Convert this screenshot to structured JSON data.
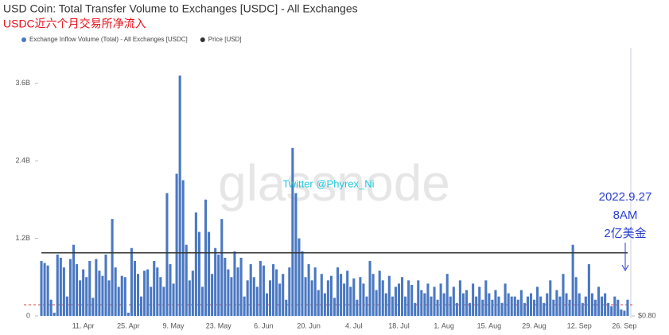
{
  "chart_data": {
    "type": "bar",
    "title": "USD Coin: Total Transfer Volume to Exchanges [USDC] - All Exchanges",
    "subtitle": "USDC近六个月交易所净流入",
    "watermark": "glassnode",
    "credit": "Twitter @Phyrex_Ni",
    "annotation": [
      "2022.9.27",
      "8AM",
      "2亿美金"
    ],
    "categories": [
      null,
      null,
      null,
      null,
      null,
      null,
      null,
      null,
      null,
      null,
      null,
      null,
      null,
      "11. Apr",
      null,
      null,
      null,
      null,
      null,
      null,
      null,
      null,
      null,
      null,
      null,
      null,
      null,
      "25. Apr",
      null,
      null,
      null,
      null,
      null,
      null,
      null,
      null,
      null,
      null,
      null,
      null,
      null,
      "9. May",
      null,
      null,
      null,
      null,
      null,
      null,
      null,
      null,
      null,
      null,
      null,
      null,
      null,
      "23. May",
      null,
      null,
      null,
      null,
      null,
      null,
      null,
      null,
      null,
      null,
      null,
      null,
      null,
      "6. Jun",
      null,
      null,
      null,
      null,
      null,
      null,
      null,
      null,
      null,
      null,
      null,
      null,
      null,
      "20. Jun",
      null,
      null,
      null,
      null,
      null,
      null,
      null,
      null,
      null,
      null,
      null,
      null,
      null,
      "4. Jul",
      null,
      null,
      null,
      null,
      null,
      null,
      null,
      null,
      null,
      null,
      null,
      null,
      null,
      "18. Jul",
      null,
      null,
      null,
      null,
      null,
      null,
      null,
      null,
      null,
      null,
      null,
      null,
      null,
      "1. Aug",
      null,
      null,
      null,
      null,
      null,
      null,
      null,
      null,
      null,
      null,
      null,
      null,
      null,
      "15. Aug",
      null,
      null,
      null,
      null,
      null,
      null,
      null,
      null,
      null,
      null,
      null,
      null,
      null,
      "29. Aug",
      null,
      null,
      null,
      null,
      null,
      null,
      null,
      null,
      null,
      null,
      null,
      null,
      null,
      "12. Sep",
      null,
      null,
      null,
      null,
      null,
      null,
      null,
      null,
      null,
      null,
      null,
      null,
      null,
      "26. Sep",
      null
    ],
    "series": [
      {
        "name": "Exchange Inflow Volume (Total) - All Exchanges [USDC]",
        "color": "#4a78c2",
        "values": [
          0.85,
          0.82,
          0.78,
          0.25,
          0.05,
          0.95,
          0.9,
          0.75,
          0.3,
          0.88,
          1.1,
          0.8,
          0.55,
          0.72,
          0.6,
          0.85,
          0.28,
          0.88,
          0.7,
          0.62,
          0.95,
          0.55,
          1.5,
          0.75,
          0.45,
          0.62,
          0.6,
          0.05,
          1.05,
          0.85,
          0.65,
          0.3,
          0.7,
          0.72,
          0.45,
          0.85,
          0.75,
          0.6,
          0.45,
          1.9,
          0.8,
          0.5,
          2.2,
          3.72,
          2.1,
          1.1,
          0.55,
          0.7,
          1.6,
          1.3,
          0.45,
          1.8,
          1.3,
          0.65,
          1.05,
          0.95,
          1.5,
          0.9,
          0.72,
          0.6,
          1.0,
          0.75,
          0.9,
          0.3,
          0.55,
          0.8,
          0.6,
          0.45,
          0.85,
          0.78,
          0.35,
          0.55,
          0.8,
          0.72,
          0.5,
          0.65,
          0.25,
          0.75,
          2.6,
          1.9,
          1.2,
          1.0,
          0.6,
          0.8,
          0.55,
          0.75,
          0.4,
          0.65,
          0.35,
          0.55,
          0.62,
          0.28,
          0.75,
          0.65,
          0.5,
          0.7,
          0.45,
          0.58,
          0.25,
          0.6,
          0.5,
          0.3,
          0.85,
          0.65,
          0.4,
          0.7,
          0.55,
          0.35,
          0.62,
          0.3,
          0.45,
          0.5,
          0.6,
          0.3,
          0.55,
          0.48,
          0.2,
          0.55,
          0.4,
          0.35,
          0.5,
          0.3,
          0.45,
          0.25,
          0.5,
          0.35,
          0.65,
          0.3,
          0.45,
          0.2,
          0.55,
          0.35,
          0.4,
          0.2,
          0.5,
          0.3,
          0.45,
          0.25,
          0.55,
          0.35,
          0.25,
          0.4,
          0.3,
          0.2,
          0.5,
          0.35,
          0.3,
          0.3,
          0.25,
          0.4,
          0.2,
          0.3,
          0.35,
          0.25,
          0.45,
          0.3,
          0.2,
          0.35,
          0.55,
          0.25,
          0.4,
          0.3,
          0.65,
          0.35,
          0.25,
          1.1,
          0.6,
          0.35,
          0.2,
          0.3,
          0.8,
          0.35,
          0.25,
          0.45,
          0.3,
          0.35,
          0.2,
          0.15,
          0.3,
          0.25,
          0.1,
          0.08,
          0.25
        ]
      },
      {
        "name": "Price [USD]",
        "color": "#333333",
        "axis": "y2",
        "values": [
          1,
          1,
          1,
          1,
          1,
          1,
          1,
          1,
          1,
          1,
          1,
          1,
          1,
          1,
          1,
          1,
          1,
          1,
          1,
          1,
          1,
          1,
          1,
          1,
          1,
          1,
          1,
          1,
          1,
          1,
          1,
          1,
          1,
          1,
          1,
          1,
          1,
          1,
          1,
          1,
          1,
          1,
          1,
          1,
          1,
          1,
          1,
          1,
          1,
          1,
          1,
          1,
          1,
          1,
          1,
          1,
          1,
          1,
          1,
          1,
          1,
          1,
          1,
          1,
          1,
          1,
          1,
          1,
          1,
          1,
          1,
          1,
          1,
          1,
          1,
          1,
          1,
          1,
          1,
          1,
          1,
          1,
          1,
          1,
          1,
          1,
          1,
          1,
          1,
          1,
          1,
          1,
          1,
          1,
          1,
          1,
          1,
          1,
          1,
          1,
          1,
          1,
          1,
          1,
          1,
          1,
          1,
          1,
          1,
          1,
          1,
          1,
          1,
          1,
          1,
          1,
          1,
          1,
          1,
          1,
          1,
          1,
          1,
          1,
          1,
          1,
          1,
          1,
          1,
          1,
          1,
          1,
          1,
          1,
          1,
          1,
          1,
          1,
          1,
          1,
          1,
          1,
          1,
          1,
          1,
          1,
          1,
          1,
          1,
          1,
          1,
          1,
          1,
          1,
          1,
          1,
          1,
          1,
          1,
          1,
          1,
          1,
          1,
          1,
          1,
          1,
          1,
          1,
          1,
          1,
          1,
          1,
          1,
          1,
          1,
          1,
          1,
          1,
          1,
          1,
          1,
          1,
          1
        ]
      }
    ],
    "ylim": [
      0,
      4.15
    ],
    "yticks": [
      0,
      {
        "value": 1.2,
        "label": "1.2B"
      },
      {
        "value": 2.4,
        "label": "2.4B"
      },
      {
        "value": 3.6,
        "label": "3.6B"
      }
    ],
    "y2lim": [
      0.8,
      1.65
    ],
    "y2ticks": [
      {
        "value": 0.8,
        "label": "$0.80"
      }
    ]
  }
}
